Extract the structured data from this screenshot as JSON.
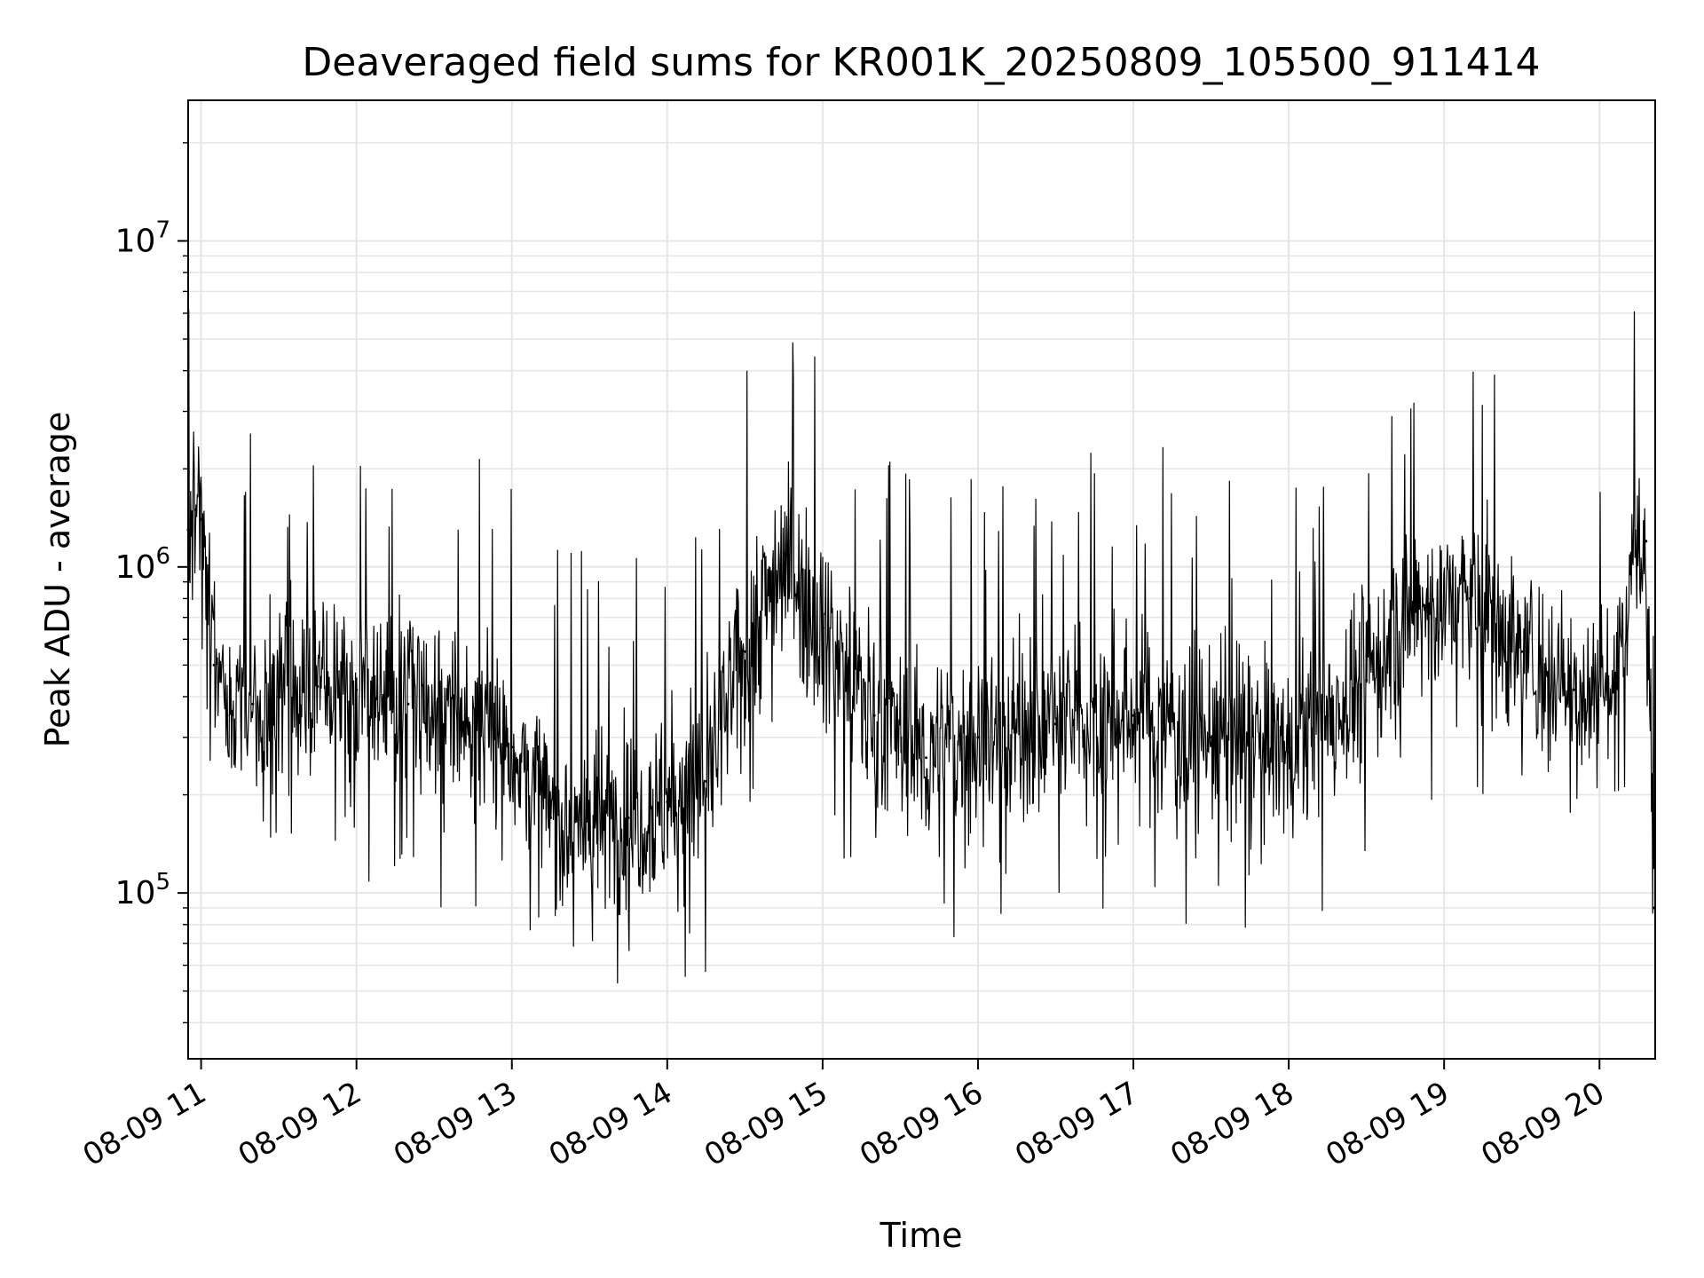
{
  "chart_data": {
    "type": "line",
    "title": "Deaveraged field sums for KR001K_20250809_105500_911414",
    "xlabel": "Time",
    "ylabel": "Peak ADU - average",
    "y_scale": "log",
    "ylim": [
      31000,
      27000000
    ],
    "xlim": [
      "2025-08-09T10:55:00",
      "2025-08-09T20:21:30"
    ],
    "x_ticks": [
      {
        "value": "2025-08-09T11:00:00",
        "label": "08-09 11"
      },
      {
        "value": "2025-08-09T12:00:00",
        "label": "08-09 12"
      },
      {
        "value": "2025-08-09T13:00:00",
        "label": "08-09 13"
      },
      {
        "value": "2025-08-09T14:00:00",
        "label": "08-09 14"
      },
      {
        "value": "2025-08-09T15:00:00",
        "label": "08-09 15"
      },
      {
        "value": "2025-08-09T16:00:00",
        "label": "08-09 16"
      },
      {
        "value": "2025-08-09T17:00:00",
        "label": "08-09 17"
      },
      {
        "value": "2025-08-09T18:00:00",
        "label": "08-09 18"
      },
      {
        "value": "2025-08-09T19:00:00",
        "label": "08-09 19"
      },
      {
        "value": "2025-08-09T20:00:00",
        "label": "08-09 20"
      }
    ],
    "y_ticks": [
      {
        "value": 100000,
        "base": "10",
        "exp": "5"
      },
      {
        "value": 1000000,
        "base": "10",
        "exp": "6"
      },
      {
        "value": 10000000,
        "base": "10",
        "exp": "7"
      }
    ],
    "grid": true,
    "line_color": "#000000",
    "grid_color": "#e6e6e6",
    "series": [
      {
        "x": [
          "2025-08-09T10:55:00",
          "2025-08-09T10:58:00",
          "2025-08-09T11:00:00",
          "2025-08-09T11:05:00",
          "2025-08-09T11:10:00",
          "2025-08-09T11:20:00",
          "2025-08-09T11:30:00",
          "2025-08-09T11:45:00",
          "2025-08-09T12:00:00",
          "2025-08-09T12:20:00",
          "2025-08-09T12:40:00",
          "2025-08-09T13:00:00",
          "2025-08-09T13:15:00",
          "2025-08-09T13:30:00",
          "2025-08-09T13:45:00",
          "2025-08-09T14:00:00",
          "2025-08-09T14:15:00",
          "2025-08-09T14:30:00",
          "2025-08-09T14:45:00",
          "2025-08-09T15:00:00",
          "2025-08-09T15:20:00",
          "2025-08-09T15:40:00",
          "2025-08-09T16:00:00",
          "2025-08-09T16:30:00",
          "2025-08-09T17:00:00",
          "2025-08-09T17:30:00",
          "2025-08-09T18:00:00",
          "2025-08-09T18:30:00",
          "2025-08-09T18:50:00",
          "2025-08-09T19:10:00",
          "2025-08-09T19:30:00",
          "2025-08-09T19:50:00",
          "2025-08-09T20:05:00",
          "2025-08-09T20:12:00",
          "2025-08-09T20:18:00",
          "2025-08-09T20:21:00"
        ],
        "values": [
          1300000,
          1500000,
          1400000,
          500000,
          350000,
          380000,
          400000,
          430000,
          420000,
          380000,
          340000,
          280000,
          170000,
          160000,
          170000,
          190000,
          220000,
          550000,
          1100000,
          650000,
          350000,
          260000,
          300000,
          330000,
          350000,
          300000,
          270000,
          450000,
          750000,
          800000,
          550000,
          420000,
          430000,
          950000,
          1200000,
          90000
        ]
      }
    ]
  }
}
